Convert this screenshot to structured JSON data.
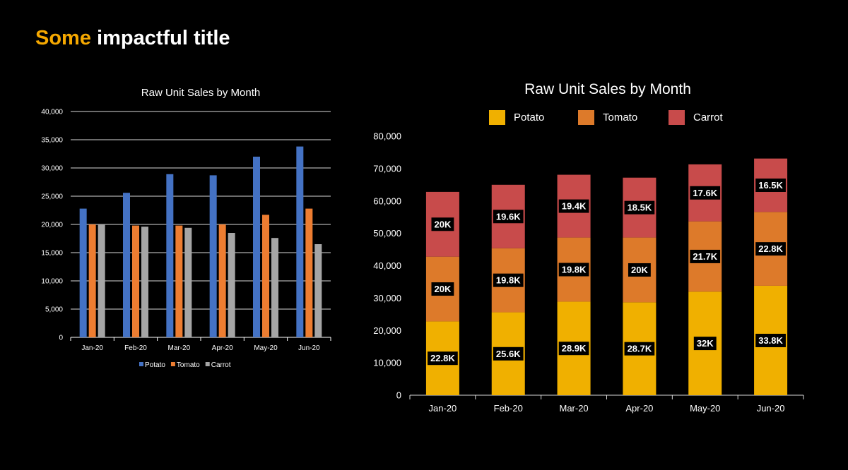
{
  "slide": {
    "title_accent": "Some",
    "title_rest": "impactful title"
  },
  "colors": {
    "accent": "#f5a800",
    "left_potato": "#4472c4",
    "left_tomato": "#ed7d31",
    "left_carrot": "#a5a5a5",
    "right_potato": "#f0b000",
    "right_tomato": "#dd7a2a",
    "right_carrot": "#c84b4b"
  },
  "chart_data": [
    {
      "type": "bar",
      "title": "Raw Unit Sales by Month",
      "categories": [
        "Jan-20",
        "Feb-20",
        "Mar-20",
        "Apr-20",
        "May-20",
        "Jun-20"
      ],
      "series": [
        {
          "name": "Potato",
          "values": [
            22800,
            25600,
            28900,
            28700,
            32000,
            33800
          ]
        },
        {
          "name": "Tomato",
          "values": [
            20000,
            19800,
            19800,
            20000,
            21700,
            22800
          ]
        },
        {
          "name": "Carrot",
          "values": [
            20000,
            19600,
            19400,
            18500,
            17600,
            16500
          ]
        }
      ],
      "yticks": [
        "0",
        "5,000",
        "10,000",
        "15,000",
        "20,000",
        "25,000",
        "30,000",
        "35,000",
        "40,000"
      ],
      "ylim": [
        0,
        40000
      ],
      "grid": true,
      "legend_position": "bottom"
    },
    {
      "type": "bar",
      "stacked": true,
      "title": "Raw Unit Sales by Month",
      "categories": [
        "Jan-20",
        "Feb-20",
        "Mar-20",
        "Apr-20",
        "May-20",
        "Jun-20"
      ],
      "series": [
        {
          "name": "Potato",
          "values": [
            22800,
            25600,
            28900,
            28700,
            32000,
            33800
          ],
          "labels": [
            "22.8K",
            "25.6K",
            "28.9K",
            "28.7K",
            "32K",
            "33.8K"
          ]
        },
        {
          "name": "Tomato",
          "values": [
            20000,
            19800,
            19800,
            20000,
            21700,
            22800
          ],
          "labels": [
            "20K",
            "19.8K",
            "19.8K",
            "20K",
            "21.7K",
            "22.8K"
          ]
        },
        {
          "name": "Carrot",
          "values": [
            20000,
            19600,
            19400,
            18500,
            17600,
            16500
          ],
          "labels": [
            "20K",
            "19.6K",
            "19.4K",
            "18.5K",
            "17.6K",
            "16.5K"
          ]
        }
      ],
      "yticks": [
        "0",
        "10,000",
        "20,000",
        "30,000",
        "40,000",
        "50,000",
        "60,000",
        "70,000",
        "80,000"
      ],
      "ylim": [
        0,
        80000
      ],
      "grid": false,
      "legend_position": "top"
    }
  ]
}
